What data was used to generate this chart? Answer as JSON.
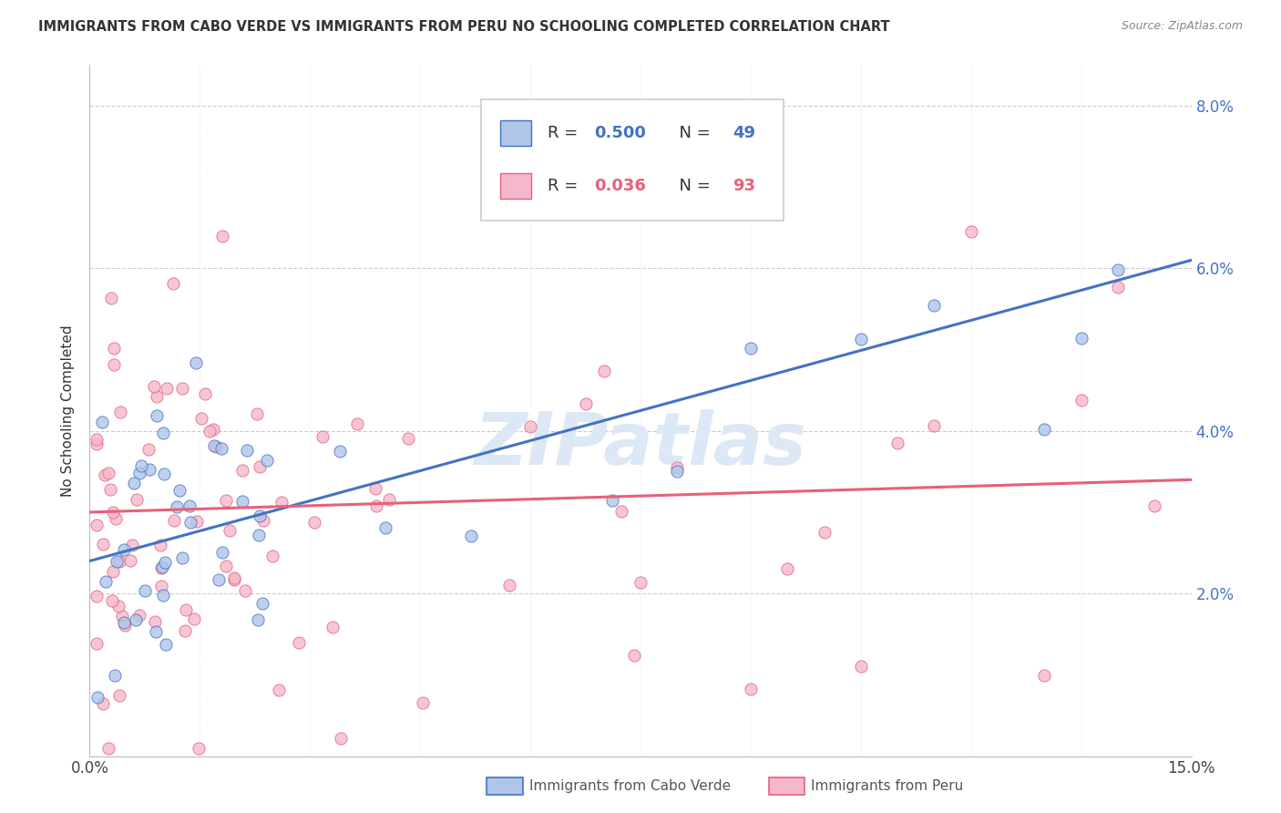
{
  "title": "IMMIGRANTS FROM CABO VERDE VS IMMIGRANTS FROM PERU NO SCHOOLING COMPLETED CORRELATION CHART",
  "source": "Source: ZipAtlas.com",
  "ylabel": "No Schooling Completed",
  "legend_cabo": "Immigrants from Cabo Verde",
  "legend_peru": "Immigrants from Peru",
  "R_cabo": 0.5,
  "N_cabo": 49,
  "R_peru": 0.036,
  "N_peru": 93,
  "color_cabo": "#aec6e8",
  "color_peru": "#f5b8cb",
  "line_cabo": "#4472c4",
  "line_peru": "#e8607a",
  "text_color_cabo": "#4472c4",
  "text_color_peru": "#e8607a",
  "watermark": "ZIPatlas",
  "watermark_color": "#dce8f5",
  "xmin": 0.0,
  "xmax": 0.15,
  "ymin": 0.0,
  "ymax": 0.085,
  "cabo_line_x0": 0.0,
  "cabo_line_y0": 0.024,
  "cabo_line_x1": 0.15,
  "cabo_line_y1": 0.061,
  "peru_line_x0": 0.0,
  "peru_line_y0": 0.03,
  "peru_line_x1": 0.15,
  "peru_line_y1": 0.034,
  "cabo_seed": 123,
  "peru_seed": 456
}
